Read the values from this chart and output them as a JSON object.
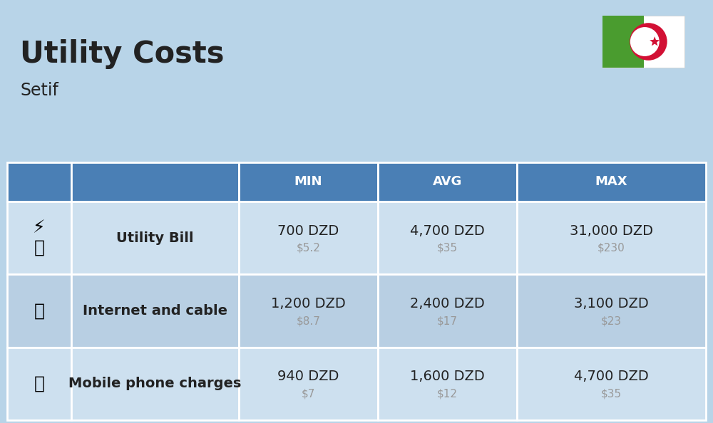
{
  "title": "Utility Costs",
  "subtitle": "Setif",
  "background_color": "#b8d4e8",
  "header_bg_color": "#4a7fb5",
  "header_text_color": "#ffffff",
  "row_bg_color_1": "#cde0ef",
  "row_bg_color_2": "#b8cfe3",
  "columns": [
    "MIN",
    "AVG",
    "MAX"
  ],
  "rows": [
    {
      "label": "Utility Bill",
      "min_dzd": "700 DZD",
      "min_usd": "$5.2",
      "avg_dzd": "4,700 DZD",
      "avg_usd": "$35",
      "max_dzd": "31,000 DZD",
      "max_usd": "$230"
    },
    {
      "label": "Internet and cable",
      "min_dzd": "1,200 DZD",
      "min_usd": "$8.7",
      "avg_dzd": "2,400 DZD",
      "avg_usd": "$17",
      "max_dzd": "3,100 DZD",
      "max_usd": "$23"
    },
    {
      "label": "Mobile phone charges",
      "min_dzd": "940 DZD",
      "min_usd": "$7",
      "avg_dzd": "1,600 DZD",
      "avg_usd": "$12",
      "max_dzd": "4,700 DZD",
      "max_usd": "$35"
    }
  ],
  "dzd_fontsize": 14,
  "usd_fontsize": 11,
  "label_fontsize": 14,
  "header_fontsize": 13,
  "title_fontsize": 30,
  "subtitle_fontsize": 17,
  "usd_color": "#999999",
  "text_color": "#222222",
  "flag_green": "#4a9c2f",
  "flag_white": "#ffffff",
  "flag_red": "#d21034"
}
